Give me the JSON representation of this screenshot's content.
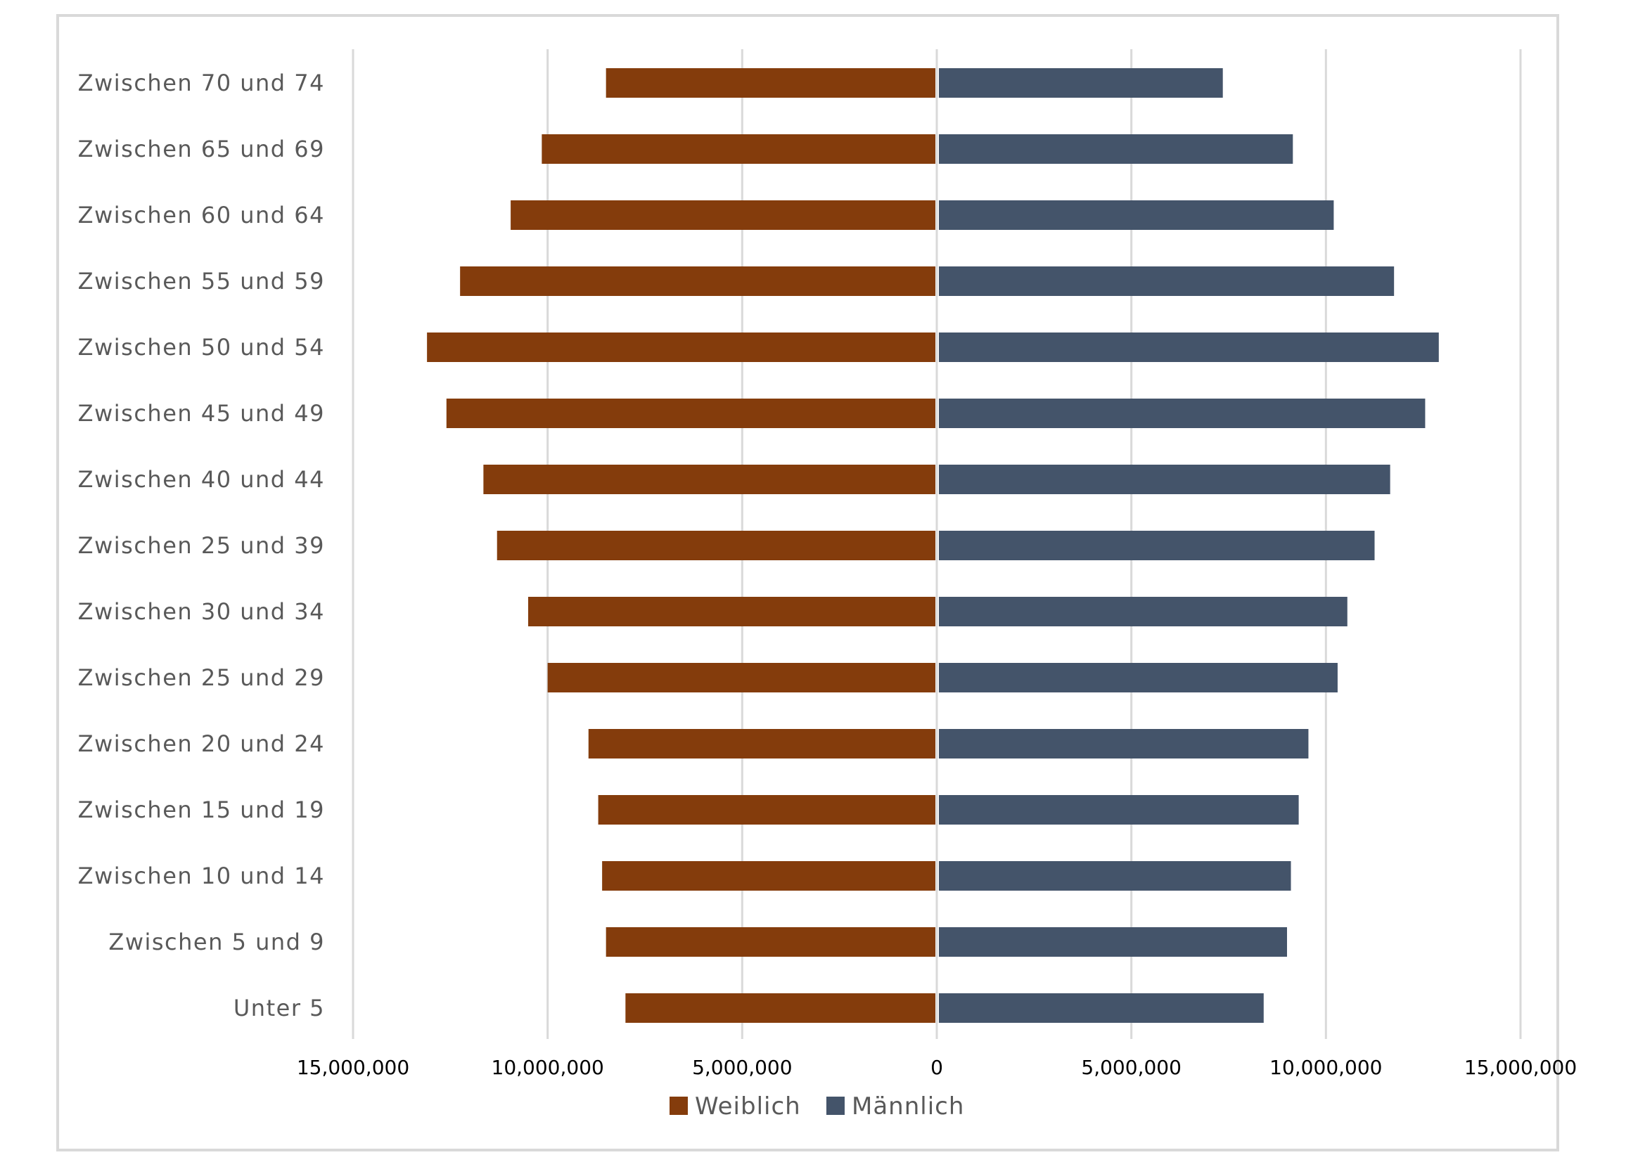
{
  "chart_data": {
    "type": "bar",
    "orientation": "horizontal",
    "subtype": "population-pyramid",
    "categories": [
      "Zwischen 70 und 74",
      "Zwischen 65 und 69",
      "Zwischen 60 und 64",
      "Zwischen 55 und 59",
      "Zwischen 50 und 54",
      "Zwischen 45 und 49",
      "Zwischen 40 und 44",
      "Zwischen 25 und 39",
      "Zwischen 30 und 34",
      "Zwischen 25 und 29",
      "Zwischen 20 und 24",
      "Zwischen 15 und 19",
      "Zwischen 10 und 14",
      "Zwischen 5 und 9",
      "Unter 5"
    ],
    "series": [
      {
        "name": "Weiblich",
        "side": "left",
        "color": "#843C0C",
        "values": [
          8500000,
          10150000,
          10950000,
          12250000,
          13100000,
          12600000,
          11650000,
          11300000,
          10500000,
          10000000,
          8950000,
          8700000,
          8600000,
          8500000,
          8000000
        ]
      },
      {
        "name": "Männlich",
        "side": "right",
        "color": "#44546A",
        "values": [
          7350000,
          9150000,
          10200000,
          11750000,
          12900000,
          12550000,
          11650000,
          11250000,
          10550000,
          10300000,
          9550000,
          9300000,
          9100000,
          9000000,
          8400000
        ]
      }
    ],
    "xlim": [
      -15000000,
      15000000
    ],
    "x_tick_values": [
      -15000000,
      -10000000,
      -5000000,
      0,
      5000000,
      10000000,
      15000000
    ],
    "x_tick_labels": [
      "15,000,000",
      "10,000,000",
      "5,000,000",
      "0",
      "5,000,000",
      "10,000,000",
      "15,000,000"
    ],
    "grid": true,
    "legend": "bottom",
    "title": "",
    "xlabel": "",
    "ylabel": ""
  },
  "colors": {
    "gridline": "#d9d9d9",
    "border": "#d9d9d9",
    "category_text": "#595959",
    "tick_text": "#000000"
  }
}
